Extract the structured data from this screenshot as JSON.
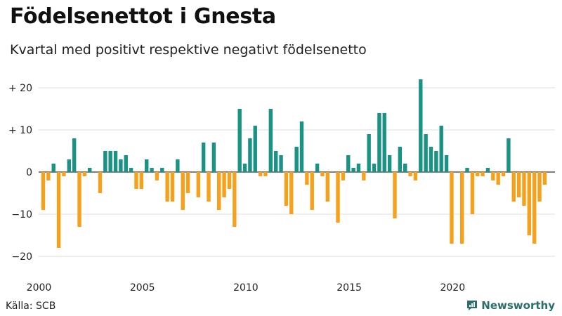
{
  "header": {
    "title": "Födelsenettot i Gnesta",
    "subtitle": "Kvartal med positivt respektive negativt födelsenetto"
  },
  "footer": {
    "source": "Källa: SCB",
    "brand": "Newsworthy"
  },
  "colors": {
    "positive": "#1b9384",
    "negative": "#f5a11c",
    "grid": "#dddddd",
    "axis": "#333333"
  },
  "chart_data": {
    "type": "bar",
    "title": "Födelsenettot i Gnesta",
    "subtitle": "Kvartal med positivt respektive negativt födelsenetto",
    "xlabel": "",
    "ylabel": "",
    "ylim": [
      -22,
      23
    ],
    "y_ticks": [
      {
        "value": 20,
        "label": "+ 20"
      },
      {
        "value": 10,
        "label": "+ 10"
      },
      {
        "value": 0,
        "label": "0"
      },
      {
        "value": -10,
        "label": "−10"
      },
      {
        "value": -20,
        "label": "−20"
      }
    ],
    "x_ticks": [
      {
        "index": 0,
        "label": "2000"
      },
      {
        "index": 20,
        "label": "2005"
      },
      {
        "index": 40,
        "label": "2010"
      },
      {
        "index": 60,
        "label": "2015"
      },
      {
        "index": 80,
        "label": "2020"
      }
    ],
    "start_year": 2000,
    "frequency": "quarterly",
    "values": [
      -9,
      -2,
      2,
      -18,
      -1,
      3,
      8,
      -13,
      -1,
      1,
      0,
      -5,
      5,
      5,
      5,
      3,
      4,
      1,
      -4,
      -4,
      3,
      1,
      -2,
      1,
      -7,
      -7,
      3,
      -9,
      -5,
      0,
      -6,
      7,
      -7,
      7,
      -9,
      -6,
      -4,
      -13,
      15,
      2,
      8,
      11,
      -1,
      -1,
      15,
      5,
      4,
      -8,
      -10,
      6,
      12,
      -3,
      -9,
      2,
      -1,
      -7,
      0,
      -12,
      -2,
      4,
      1,
      2,
      -2,
      9,
      2,
      14,
      14,
      4,
      -11,
      6,
      2,
      -1,
      -2,
      22,
      9,
      6,
      5,
      11,
      4,
      -17,
      0,
      -17,
      1,
      -10,
      -1,
      -1,
      1,
      -2,
      -3,
      -1,
      8,
      -7,
      -6,
      -8,
      -15,
      -17,
      -7,
      -3
    ]
  }
}
